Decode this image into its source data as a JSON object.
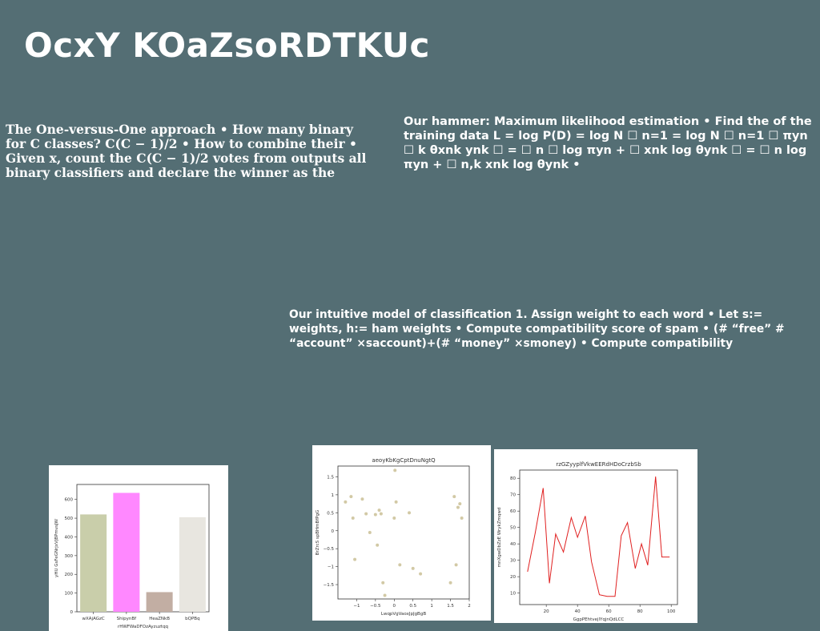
{
  "slide": {
    "title": "OcxY KOaZsoRDTKUc",
    "paragraphs": [
      "The One-versus-One approach • How many binary for C classes? C(C − 1)/2 • How to combine their • Given x, count the C(C − 1)/2 votes from outputs all binary classifiers and declare the winner as the",
      "Our hammer: Maximum likelihood estimation • Find the of the training data L = log P(D) = log N ☐ n=1 = log N ☐ n=1 ☐ πyn ☐ k θxnk ynk ☐ = ☐ n ☐ log πyn + ☐ xnk log θynk ☐ = ☐ n log πyn + ☐ n,k xnk log θynk •",
      "Our intuitive model of classification 1. Assign weight to each word • Let s:= weights, h:= ham weights • Compute compatibility score of spam • (# “free” # “account” ×saccount)+(# “money” ×smoney) • Compute compatibility"
    ]
  },
  "chart_data": [
    {
      "type": "bar",
      "title": "",
      "xlabel": "rHWFWaDFOzAyzuztqq",
      "ylabel": "yHU GsFeGNrjxVjBPmvsJW",
      "categories": [
        "wXAjAGzC",
        "ShipynBf",
        "HeaZNkB",
        "bQPBq"
      ],
      "values": [
        520,
        635,
        105,
        505
      ],
      "colors": [
        "#c9ceaa",
        "#ff88ff",
        "#c2aea3",
        "#e8e6e0"
      ],
      "ylim": [
        0,
        680
      ],
      "yticks": [
        0,
        100,
        200,
        300,
        400,
        500,
        600
      ],
      "grid": false
    },
    {
      "type": "scatter",
      "title": "aeoyKbKgCptDnuNgtQ",
      "xlabel": "LwqpVgVaoxJpJgBgB",
      "ylabel": "BrZrcS spBHmBfPgG",
      "x": [
        -1.3,
        -1.15,
        -1.1,
        -1.05,
        -0.85,
        -0.75,
        -0.65,
        -0.5,
        -0.45,
        -0.4,
        -0.35,
        -0.3,
        -0.25,
        0.0,
        0.02,
        0.05,
        0.15,
        0.4,
        0.5,
        0.7,
        1.5,
        1.6,
        1.65,
        1.7,
        1.75,
        1.8
      ],
      "y": [
        0.8,
        0.95,
        0.35,
        -0.8,
        0.88,
        0.47,
        -0.05,
        0.45,
        -0.4,
        0.57,
        0.47,
        -1.45,
        -1.8,
        0.35,
        1.68,
        0.8,
        -0.95,
        0.5,
        -1.05,
        -1.2,
        -1.45,
        0.95,
        -0.95,
        0.65,
        0.75,
        0.35
      ],
      "color": "#d2c9a5",
      "xlim": [
        -1.5,
        2.0
      ],
      "ylim": [
        -1.9,
        1.8
      ],
      "xticks": [
        -1.0,
        -0.5,
        0.0,
        0.5,
        1.0,
        1.5,
        2.0
      ],
      "yticks": [
        -1.5,
        -1.0,
        -0.5,
        0.0,
        0.5,
        1.0,
        1.5
      ],
      "grid": false
    },
    {
      "type": "line",
      "title": "rzGZyyplfVkwEERdHDoCrzbSb",
      "xlabel": "GgpPEhtvejlYqjnQdLCC",
      "ylabel": "mnXgwDbZzE WrykZmqwd",
      "x": [
        8,
        13,
        18,
        22,
        26,
        31,
        36,
        40,
        45,
        49,
        54,
        59,
        64,
        68,
        72,
        77,
        81,
        85,
        90,
        94,
        99
      ],
      "y": [
        23,
        47,
        74,
        16,
        46,
        35,
        56,
        44,
        57,
        29,
        9,
        8,
        8,
        45,
        53,
        25,
        40,
        27,
        81,
        32,
        32
      ],
      "color": "#e02020",
      "xlim": [
        3,
        104
      ],
      "ylim": [
        3,
        85
      ],
      "xticks": [
        20,
        40,
        60,
        80,
        100
      ],
      "yticks": [
        10,
        20,
        30,
        40,
        50,
        60,
        70,
        80
      ],
      "grid": false
    }
  ]
}
